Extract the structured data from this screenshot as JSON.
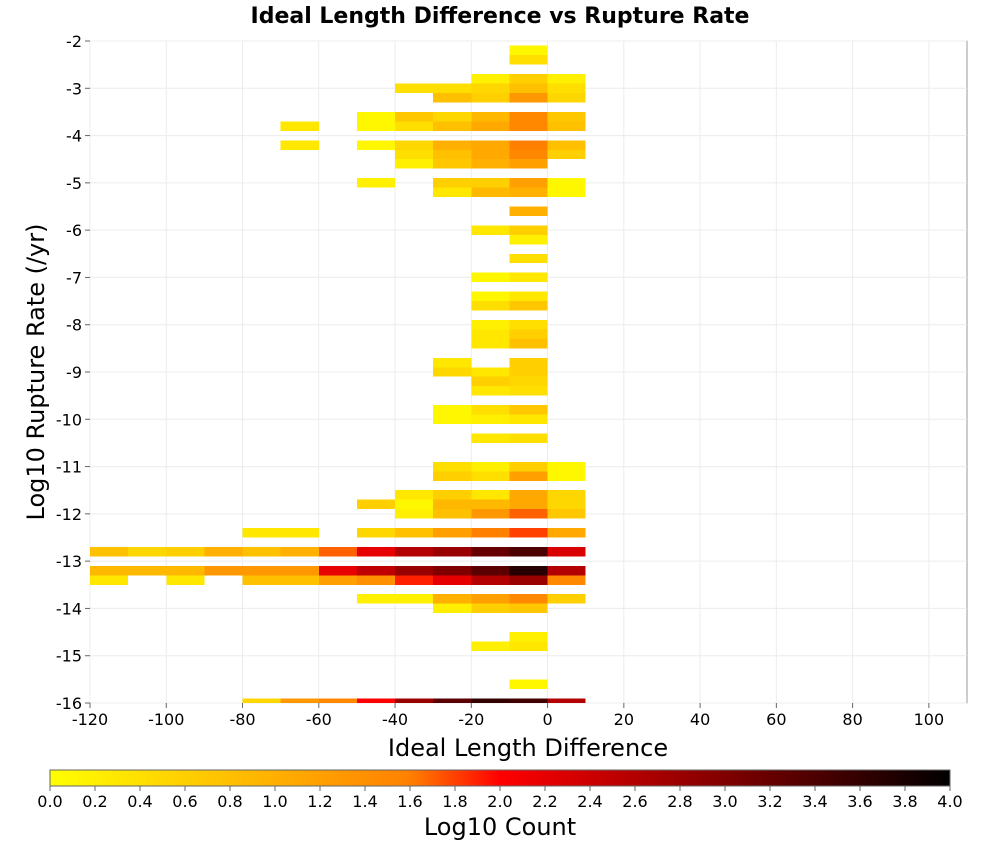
{
  "chart_data": {
    "type": "heatmap",
    "title": "Ideal Length Difference vs Rupture Rate",
    "xlabel": "Ideal Length Difference",
    "ylabel": "Log10 Rupture Rate (/yr)",
    "xlim": [
      -120,
      110
    ],
    "ylim": [
      -16,
      -2
    ],
    "xticks": [
      "-120",
      "-100",
      "-80",
      "-60",
      "-40",
      "-20",
      "0",
      "20",
      "40",
      "60",
      "80",
      "100"
    ],
    "yticks": [
      "-2",
      "-3",
      "-4",
      "-5",
      "-6",
      "-7",
      "-8",
      "-9",
      "-10",
      "-11",
      "-12",
      "-13",
      "-14",
      "-15",
      "-16"
    ],
    "colorbar": {
      "label": "Log10 Count",
      "min": 0.0,
      "max": 4.0,
      "ticks": [
        "0.0",
        "0.2",
        "0.4",
        "0.6",
        "0.8",
        "1.0",
        "1.2",
        "1.4",
        "1.6",
        "1.8",
        "2.0",
        "2.2",
        "2.4",
        "2.6",
        "2.8",
        "3.0",
        "3.2",
        "3.4",
        "3.6",
        "3.8",
        "4.0"
      ]
    },
    "bin_width_x": 10,
    "bin_height_y": 0.2,
    "grid": true,
    "cells": [
      [
        -5,
        -2.2,
        0.1
      ],
      [
        -5,
        -2.4,
        0.4
      ],
      [
        -15,
        -2.8,
        0.2
      ],
      [
        -5,
        -2.8,
        0.6
      ],
      [
        5,
        -2.8,
        0.2
      ],
      [
        -35,
        -3.0,
        0.4
      ],
      [
        -25,
        -3.0,
        0.4
      ],
      [
        -15,
        -3.0,
        0.5
      ],
      [
        -5,
        -3.0,
        0.8
      ],
      [
        5,
        -3.0,
        0.4
      ],
      [
        -25,
        -3.2,
        0.8
      ],
      [
        -15,
        -3.2,
        0.6
      ],
      [
        -5,
        -3.2,
        1.3
      ],
      [
        5,
        -3.2,
        0.5
      ],
      [
        -45,
        -3.6,
        0.1
      ],
      [
        -35,
        -3.6,
        0.7
      ],
      [
        -25,
        -3.6,
        0.5
      ],
      [
        -15,
        -3.6,
        0.9
      ],
      [
        -5,
        -3.6,
        1.5
      ],
      [
        5,
        -3.6,
        0.7
      ],
      [
        -65,
        -3.8,
        0.3
      ],
      [
        -45,
        -3.8,
        0.1
      ],
      [
        -35,
        -3.8,
        0.4
      ],
      [
        -25,
        -3.8,
        0.8
      ],
      [
        -15,
        -3.8,
        1.1
      ],
      [
        -5,
        -3.8,
        1.5
      ],
      [
        5,
        -3.8,
        0.8
      ],
      [
        -65,
        -4.2,
        0.3
      ],
      [
        -45,
        -4.2,
        0.1
      ],
      [
        -35,
        -4.2,
        0.5
      ],
      [
        -25,
        -4.2,
        1.0
      ],
      [
        -15,
        -4.2,
        1.1
      ],
      [
        -5,
        -4.2,
        1.6
      ],
      [
        5,
        -4.2,
        0.8
      ],
      [
        -35,
        -4.4,
        0.4
      ],
      [
        -25,
        -4.4,
        0.8
      ],
      [
        -15,
        -4.4,
        1.1
      ],
      [
        -5,
        -4.4,
        1.5
      ],
      [
        5,
        -4.4,
        0.6
      ],
      [
        -35,
        -4.6,
        0.2
      ],
      [
        -25,
        -4.6,
        0.7
      ],
      [
        -15,
        -4.6,
        1.0
      ],
      [
        -5,
        -4.6,
        1.2
      ],
      [
        -45,
        -5.0,
        0.2
      ],
      [
        -25,
        -5.0,
        0.6
      ],
      [
        -15,
        -5.0,
        0.6
      ],
      [
        -5,
        -5.0,
        1.2
      ],
      [
        5,
        -5.0,
        0.1
      ],
      [
        -25,
        -5.2,
        0.3
      ],
      [
        -15,
        -5.2,
        0.9
      ],
      [
        -5,
        -5.2,
        1.0
      ],
      [
        5,
        -5.2,
        0.1
      ],
      [
        -5,
        -5.6,
        1.0
      ],
      [
        -15,
        -6.0,
        0.3
      ],
      [
        -5,
        -6.0,
        0.6
      ],
      [
        -5,
        -6.2,
        0.2
      ],
      [
        -5,
        -6.6,
        0.4
      ],
      [
        -15,
        -7.0,
        0.1
      ],
      [
        -5,
        -7.0,
        0.3
      ],
      [
        -15,
        -7.4,
        0.1
      ],
      [
        -5,
        -7.4,
        0.3
      ],
      [
        -15,
        -7.6,
        0.4
      ],
      [
        -5,
        -7.6,
        0.7
      ],
      [
        -15,
        -8.0,
        0.2
      ],
      [
        -5,
        -8.0,
        0.4
      ],
      [
        -15,
        -8.2,
        0.3
      ],
      [
        -5,
        -8.2,
        0.6
      ],
      [
        -15,
        -8.4,
        0.3
      ],
      [
        -5,
        -8.4,
        0.8
      ],
      [
        -25,
        -8.8,
        0.3
      ],
      [
        -5,
        -8.8,
        0.6
      ],
      [
        -25,
        -9.0,
        0.5
      ],
      [
        -15,
        -9.0,
        0.3
      ],
      [
        -5,
        -9.0,
        0.6
      ],
      [
        -15,
        -9.2,
        0.6
      ],
      [
        -5,
        -9.2,
        0.5
      ],
      [
        -15,
        -9.4,
        0.3
      ],
      [
        -5,
        -9.4,
        0.4
      ],
      [
        -25,
        -9.8,
        0.1
      ],
      [
        -15,
        -9.8,
        0.4
      ],
      [
        -5,
        -9.8,
        0.7
      ],
      [
        -25,
        -10.0,
        0.1
      ],
      [
        -15,
        -10.0,
        0.2
      ],
      [
        -5,
        -10.0,
        0.3
      ],
      [
        -15,
        -10.4,
        0.3
      ],
      [
        -5,
        -10.4,
        0.4
      ],
      [
        -25,
        -11.0,
        0.4
      ],
      [
        -15,
        -11.0,
        0.2
      ],
      [
        -5,
        -11.0,
        0.6
      ],
      [
        5,
        -11.0,
        0.1
      ],
      [
        -25,
        -11.2,
        0.6
      ],
      [
        -15,
        -11.2,
        0.4
      ],
      [
        -5,
        -11.2,
        1.2
      ],
      [
        5,
        -11.2,
        0.1
      ],
      [
        -35,
        -11.6,
        0.3
      ],
      [
        -25,
        -11.6,
        0.6
      ],
      [
        -15,
        -11.6,
        0.3
      ],
      [
        -5,
        -11.6,
        1.1
      ],
      [
        5,
        -11.6,
        0.5
      ],
      [
        -45,
        -11.8,
        0.6
      ],
      [
        -35,
        -11.8,
        0.1
      ],
      [
        -25,
        -11.8,
        0.9
      ],
      [
        -15,
        -11.8,
        0.9
      ],
      [
        -5,
        -11.8,
        1.1
      ],
      [
        5,
        -11.8,
        0.5
      ],
      [
        -35,
        -12.0,
        0.2
      ],
      [
        -25,
        -12.0,
        0.8
      ],
      [
        -15,
        -12.0,
        1.3
      ],
      [
        -5,
        -12.0,
        1.7
      ],
      [
        5,
        -12.0,
        0.7
      ],
      [
        -75,
        -12.4,
        0.3
      ],
      [
        -65,
        -12.4,
        0.3
      ],
      [
        -45,
        -12.4,
        0.5
      ],
      [
        -35,
        -12.4,
        0.8
      ],
      [
        -25,
        -12.4,
        1.2
      ],
      [
        -15,
        -12.4,
        1.6
      ],
      [
        -5,
        -12.4,
        1.8
      ],
      [
        5,
        -12.4,
        1.1
      ],
      [
        -115,
        -12.8,
        0.8
      ],
      [
        -105,
        -12.8,
        0.5
      ],
      [
        -95,
        -12.8,
        0.6
      ],
      [
        -85,
        -12.8,
        1.0
      ],
      [
        -75,
        -12.8,
        0.8
      ],
      [
        -65,
        -12.8,
        1.0
      ],
      [
        -55,
        -12.8,
        1.7
      ],
      [
        -45,
        -12.8,
        2.2
      ],
      [
        -35,
        -12.8,
        2.6
      ],
      [
        -25,
        -12.8,
        2.8
      ],
      [
        -15,
        -12.8,
        3.2
      ],
      [
        -5,
        -12.8,
        3.4
      ],
      [
        5,
        -12.8,
        2.3
      ],
      [
        -115,
        -13.2,
        0.9
      ],
      [
        -105,
        -13.2,
        0.9
      ],
      [
        -95,
        -13.2,
        0.9
      ],
      [
        -85,
        -13.2,
        1.3
      ],
      [
        -75,
        -13.2,
        1.3
      ],
      [
        -65,
        -13.2,
        1.3
      ],
      [
        -55,
        -13.2,
        2.2
      ],
      [
        -45,
        -13.2,
        2.5
      ],
      [
        -35,
        -13.2,
        2.8
      ],
      [
        -25,
        -13.2,
        3.0
      ],
      [
        -15,
        -13.2,
        3.3
      ],
      [
        -5,
        -13.2,
        3.7
      ],
      [
        5,
        -13.2,
        2.6
      ],
      [
        -115,
        -13.4,
        0.3
      ],
      [
        -95,
        -13.4,
        0.3
      ],
      [
        -75,
        -13.4,
        0.8
      ],
      [
        -65,
        -13.4,
        0.8
      ],
      [
        -55,
        -13.4,
        1.2
      ],
      [
        -45,
        -13.4,
        1.4
      ],
      [
        -35,
        -13.4,
        1.9
      ],
      [
        -25,
        -13.4,
        2.2
      ],
      [
        -15,
        -13.4,
        2.6
      ],
      [
        -5,
        -13.4,
        2.8
      ],
      [
        5,
        -13.4,
        1.5
      ],
      [
        -45,
        -13.8,
        0.2
      ],
      [
        -35,
        -13.8,
        0.2
      ],
      [
        -25,
        -13.8,
        1.0
      ],
      [
        -15,
        -13.8,
        1.2
      ],
      [
        -5,
        -13.8,
        1.5
      ],
      [
        5,
        -13.8,
        0.6
      ],
      [
        -25,
        -14.0,
        0.2
      ],
      [
        -15,
        -14.0,
        0.6
      ],
      [
        -5,
        -14.0,
        0.7
      ],
      [
        -5,
        -14.6,
        0.2
      ],
      [
        -15,
        -14.8,
        0.2
      ],
      [
        -5,
        -14.8,
        0.3
      ],
      [
        -5,
        -15.6,
        0.1
      ],
      [
        -75,
        -16.0,
        0.5
      ],
      [
        -65,
        -16.0,
        1.3
      ],
      [
        -55,
        -16.0,
        1.5
      ],
      [
        -45,
        -16.0,
        2.0
      ],
      [
        -35,
        -16.0,
        2.8
      ],
      [
        -25,
        -16.0,
        3.3
      ],
      [
        -15,
        -16.0,
        3.6
      ],
      [
        -5,
        -16.0,
        3.5
      ],
      [
        5,
        -16.0,
        2.6
      ]
    ]
  }
}
